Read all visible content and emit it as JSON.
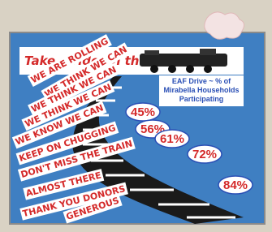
{
  "banner": {
    "title": "Take a ride on the"
  },
  "info": {
    "lines": [
      "EAF Drive ~ % of",
      "Mirabella Households",
      "Participating"
    ]
  },
  "percentages": [
    "45%",
    "56%",
    "61%",
    "72%",
    "84%"
  ],
  "slogans": [
    "WE ARE ROLLING",
    "WE THINK WE CAN",
    "WE THINK WE CAN",
    "WE THINK WE CAN",
    "WE KNOW WE CAN",
    "KEEP ON CHUGGING",
    "DON'T MISS THE TRAIN",
    "ALMOST THERE",
    "THANK YOU DONORS",
    "GENEROUS"
  ]
}
